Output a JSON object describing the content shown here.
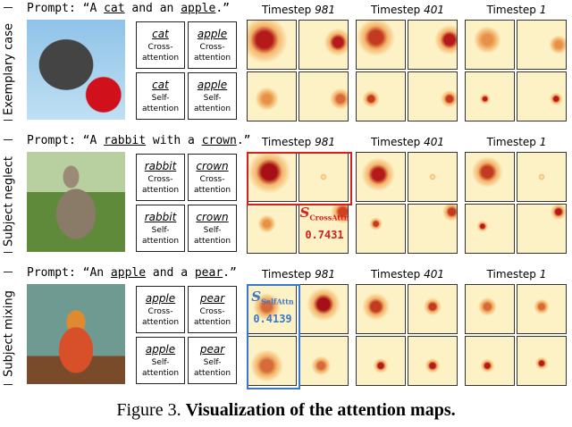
{
  "rows": [
    {
      "side_label": "Exemplary case",
      "prompt": [
        {
          "text": "Prompt: “A "
        },
        {
          "text": "cat",
          "underline": true
        },
        {
          "text": " and an "
        },
        {
          "text": "apple",
          "underline": true
        },
        {
          "text": ".”"
        }
      ],
      "words": [
        "cat",
        "apple"
      ]
    },
    {
      "side_label": "Subject neglect",
      "prompt": [
        {
          "text": "Prompt: “A "
        },
        {
          "text": "rabbit",
          "underline": true
        },
        {
          "text": " with a "
        },
        {
          "text": "crown",
          "underline": true
        },
        {
          "text": ".”"
        }
      ],
      "words": [
        "rabbit",
        "crown"
      ],
      "score": {
        "symbol": "S",
        "subscript": "CrossAttn",
        "value": 0.7431
      }
    },
    {
      "side_label": "Subject mixing",
      "prompt": [
        {
          "text": "Prompt: “An "
        },
        {
          "text": "apple",
          "underline": true
        },
        {
          "text": " and a "
        },
        {
          "text": "pear",
          "underline": true
        },
        {
          "text": ".”"
        }
      ],
      "words": [
        "apple",
        "pear"
      ],
      "score": {
        "symbol": "S",
        "subscript": "SelfAttn",
        "value": 0.4139
      }
    }
  ],
  "attention_types": [
    "Cross-attention",
    "Self-attention"
  ],
  "timestep_label": "Timestep",
  "timesteps": [
    "981",
    "401",
    "1"
  ],
  "caption": {
    "prefix": "Figure 3.",
    "text": "Visualization of the attention maps."
  }
}
